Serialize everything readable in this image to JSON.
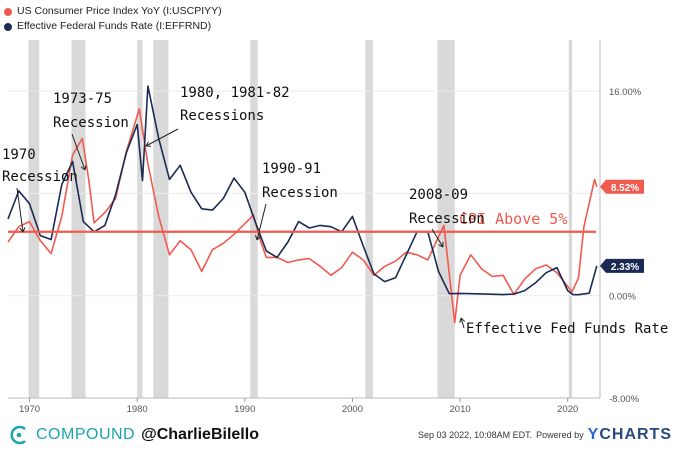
{
  "legend": {
    "series1": "US Consumer Price Index YoY (I:USCPIYY)",
    "series2": "Effective Federal Funds Rate (I:EFFRND)",
    "color1": "#f05a4f",
    "color2": "#1b2a55"
  },
  "chart_data": {
    "type": "line",
    "xlim": [
      1968,
      2023
    ],
    "ylim": [
      -8,
      20
    ],
    "x_ticks": [
      1970,
      1980,
      1990,
      2000,
      2010,
      2020
    ],
    "x_tick_labels": [
      "1970",
      "1980",
      "1990",
      "2000",
      "2010",
      "2020"
    ],
    "y_ticks": [
      16,
      8,
      0,
      -8
    ],
    "y_tick_labels": [
      "16.00%",
      "",
      "0.00%",
      "-8.00%"
    ],
    "recessions": [
      [
        1969.9,
        1970.9
      ],
      [
        1973.9,
        1975.2
      ],
      [
        1980.0,
        1980.5
      ],
      [
        1981.5,
        1982.9
      ],
      [
        1990.5,
        1991.2
      ],
      [
        2001.2,
        2001.9
      ],
      [
        2007.9,
        2009.5
      ],
      [
        2020.1,
        2020.4
      ]
    ],
    "threshold": {
      "value": 5,
      "label": "CPI Above 5%",
      "color": "#f05a4f"
    },
    "series": [
      {
        "name": "US Consumer Price Index YoY (I:USCPIYY)",
        "color": "#f05a4f",
        "last_value": "8.52%",
        "points": [
          [
            1968,
            4.2
          ],
          [
            1969,
            5.4
          ],
          [
            1970,
            5.8
          ],
          [
            1971,
            4.3
          ],
          [
            1972,
            3.3
          ],
          [
            1973,
            6.2
          ],
          [
            1974,
            11.0
          ],
          [
            1974.9,
            12.3
          ],
          [
            1975.5,
            9.1
          ],
          [
            1976,
            5.7
          ],
          [
            1977,
            6.5
          ],
          [
            1978,
            7.6
          ],
          [
            1979,
            11.3
          ],
          [
            1980.2,
            14.6
          ],
          [
            1981,
            10.3
          ],
          [
            1982,
            6.2
          ],
          [
            1983,
            3.2
          ],
          [
            1984,
            4.3
          ],
          [
            1985,
            3.6
          ],
          [
            1986,
            1.9
          ],
          [
            1987,
            3.6
          ],
          [
            1988,
            4.1
          ],
          [
            1989,
            4.8
          ],
          [
            1990.8,
            6.3
          ],
          [
            1991.5,
            4.2
          ],
          [
            1992,
            3.0
          ],
          [
            1993,
            3.0
          ],
          [
            1994,
            2.6
          ],
          [
            1995,
            2.8
          ],
          [
            1996,
            2.9
          ],
          [
            1997,
            2.3
          ],
          [
            1998,
            1.6
          ],
          [
            1999,
            2.2
          ],
          [
            2000,
            3.4
          ],
          [
            2001,
            2.8
          ],
          [
            2002,
            1.6
          ],
          [
            2003,
            2.3
          ],
          [
            2004,
            2.7
          ],
          [
            2005,
            3.4
          ],
          [
            2006,
            3.2
          ],
          [
            2007,
            2.8
          ],
          [
            2008.5,
            5.5
          ],
          [
            2009.5,
            -2.1
          ],
          [
            2010,
            1.6
          ],
          [
            2011,
            3.2
          ],
          [
            2012,
            2.1
          ],
          [
            2013,
            1.5
          ],
          [
            2014,
            1.6
          ],
          [
            2015,
            0.1
          ],
          [
            2016,
            1.3
          ],
          [
            2017,
            2.1
          ],
          [
            2018,
            2.4
          ],
          [
            2019,
            1.8
          ],
          [
            2020.4,
            0.3
          ],
          [
            2021,
            1.4
          ],
          [
            2021.5,
            5.4
          ],
          [
            2022.5,
            9.1
          ],
          [
            2022.7,
            8.52
          ]
        ]
      },
      {
        "name": "Effective Federal Funds Rate (I:EFFRND)",
        "color": "#1b2a55",
        "last_value": "2.33%",
        "points": [
          [
            1968,
            6.0
          ],
          [
            1969,
            8.2
          ],
          [
            1970,
            7.2
          ],
          [
            1971,
            4.7
          ],
          [
            1972,
            4.4
          ],
          [
            1973,
            8.7
          ],
          [
            1974,
            10.5
          ],
          [
            1975,
            5.8
          ],
          [
            1976,
            5.0
          ],
          [
            1977,
            5.5
          ],
          [
            1978,
            7.9
          ],
          [
            1979,
            11.2
          ],
          [
            1980,
            13.4
          ],
          [
            1980.5,
            9.0
          ],
          [
            1981,
            16.4
          ],
          [
            1982,
            12.3
          ],
          [
            1983,
            9.1
          ],
          [
            1984,
            10.2
          ],
          [
            1985,
            8.1
          ],
          [
            1986,
            6.8
          ],
          [
            1987,
            6.7
          ],
          [
            1988,
            7.6
          ],
          [
            1989,
            9.2
          ],
          [
            1990,
            8.1
          ],
          [
            1991,
            5.7
          ],
          [
            1992,
            3.5
          ],
          [
            1993,
            3.0
          ],
          [
            1994,
            4.2
          ],
          [
            1995,
            5.8
          ],
          [
            1996,
            5.3
          ],
          [
            1997,
            5.5
          ],
          [
            1998,
            5.4
          ],
          [
            1999,
            5.0
          ],
          [
            2000,
            6.2
          ],
          [
            2001,
            3.9
          ],
          [
            2002,
            1.7
          ],
          [
            2003,
            1.1
          ],
          [
            2004,
            1.4
          ],
          [
            2005,
            3.2
          ],
          [
            2006,
            5.0
          ],
          [
            2007,
            5.0
          ],
          [
            2008,
            1.9
          ],
          [
            2009,
            0.16
          ],
          [
            2010,
            0.18
          ],
          [
            2012,
            0.14
          ],
          [
            2014,
            0.09
          ],
          [
            2015,
            0.13
          ],
          [
            2016,
            0.4
          ],
          [
            2017,
            1.0
          ],
          [
            2018,
            1.8
          ],
          [
            2019,
            2.2
          ],
          [
            2020,
            0.4
          ],
          [
            2020.5,
            0.09
          ],
          [
            2021,
            0.08
          ],
          [
            2022,
            0.2
          ],
          [
            2022.7,
            2.33
          ]
        ]
      }
    ],
    "annotations": {
      "r1970a": "1970",
      "r1970b": "Recession",
      "r1973a": "1973-75",
      "r1973b": "Recession",
      "r1980a": "1980, 1981-82",
      "r1980b": "Recessions",
      "r1990a": "1990-91",
      "r1990b": "Recession",
      "r2008a": "2008-09",
      "r2008b": "Recession",
      "fed": "Effective Fed Funds Rate"
    }
  },
  "footer": {
    "brand": "COMPOUND",
    "handle": "@CharlieBilello",
    "timestamp": "Sep 03 2022, 10:08AM EDT.",
    "powered": "Powered by",
    "ycharts_y": "Y",
    "ycharts_rest": "CHARTS"
  }
}
